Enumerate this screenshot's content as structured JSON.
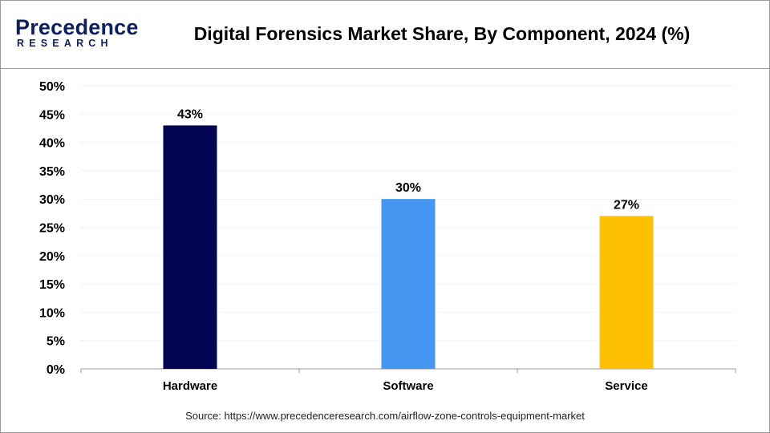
{
  "logo": {
    "brand_main": "Precedence",
    "brand_sub": "RESEARCH"
  },
  "colors": {
    "hardware": "#020452",
    "software": "#4596f1",
    "service": "#fdc005",
    "brand": "#0d1f5c"
  },
  "source": "Source: https://www.precedenceresearch.com/airflow-zone-controls-equipment-market",
  "chart_data": {
    "type": "bar",
    "title": "Digital Forensics Market Share, By Component, 2024 (%)",
    "xlabel": "",
    "ylabel": "",
    "categories": [
      "Hardware",
      "Software",
      "Service"
    ],
    "values": [
      43,
      30,
      27
    ],
    "data_labels": [
      "43%",
      "30%",
      "27%"
    ],
    "bar_colors": [
      "#020452",
      "#4596f1",
      "#fdc005"
    ],
    "ylim": [
      0,
      50
    ],
    "y_ticks": [
      0,
      5,
      10,
      15,
      20,
      25,
      30,
      35,
      40,
      45,
      50
    ],
    "y_tick_labels": [
      "0%",
      "5%",
      "10%",
      "15%",
      "20%",
      "25%",
      "30%",
      "35%",
      "40%",
      "45%",
      "50%"
    ],
    "grid": true,
    "legend": "none"
  }
}
